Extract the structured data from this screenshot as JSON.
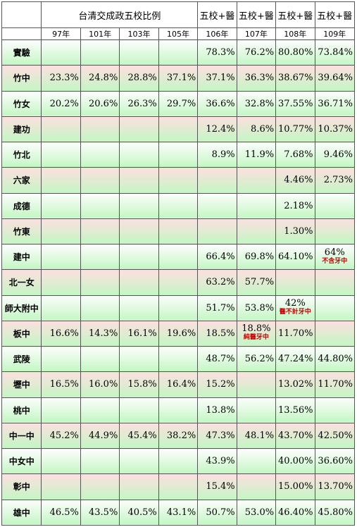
{
  "header": {
    "group_title": "台清交成政五校比例",
    "group_cols": [
      "106年",
      "107年",
      "108年",
      "109年"
    ],
    "group_col_title": "五校+醫",
    "years": [
      "97年",
      "101年",
      "103年",
      "105年",
      "106年",
      "107年",
      "108年",
      "109年"
    ]
  },
  "rows": [
    {
      "school": "實驗",
      "values": [
        "",
        "",
        "",
        "",
        "78.3%",
        "76.2%",
        "80.80%",
        "73.84%"
      ],
      "notes": [
        "",
        "",
        "",
        "",
        "",
        "",
        "",
        ""
      ],
      "tint": "g"
    },
    {
      "school": "竹中",
      "values": [
        "23.3%",
        "24.8%",
        "28.8%",
        "37.1%",
        "37.1%",
        "36.3%",
        "38.67%",
        "39.64%"
      ],
      "notes": [
        "",
        "",
        "",
        "",
        "",
        "",
        "",
        ""
      ],
      "tint": "p"
    },
    {
      "school": "竹女",
      "values": [
        "20.2%",
        "20.6%",
        "26.3%",
        "29.7%",
        "36.6%",
        "32.8%",
        "37.55%",
        "36.71%"
      ],
      "notes": [
        "",
        "",
        "",
        "",
        "",
        "",
        "",
        ""
      ],
      "tint": "g"
    },
    {
      "school": "建功",
      "values": [
        "",
        "",
        "",
        "",
        "12.4%",
        "8.6%",
        "10.77%",
        "10.37%"
      ],
      "notes": [
        "",
        "",
        "",
        "",
        "",
        "",
        "",
        ""
      ],
      "tint": "p"
    },
    {
      "school": "竹北",
      "values": [
        "",
        "",
        "",
        "",
        "8.9%",
        "11.9%",
        "7.68%",
        "9.46%"
      ],
      "notes": [
        "",
        "",
        "",
        "",
        "",
        "",
        "",
        ""
      ],
      "tint": "g"
    },
    {
      "school": "六家",
      "values": [
        "",
        "",
        "",
        "",
        "",
        "",
        "4.46%",
        "2.73%"
      ],
      "notes": [
        "",
        "",
        "",
        "",
        "",
        "",
        "",
        ""
      ],
      "tint": "p"
    },
    {
      "school": "成德",
      "values": [
        "",
        "",
        "",
        "",
        "",
        "",
        "2.18%",
        ""
      ],
      "notes": [
        "",
        "",
        "",
        "",
        "",
        "",
        "",
        ""
      ],
      "tint": "g"
    },
    {
      "school": "竹東",
      "values": [
        "",
        "",
        "",
        "",
        "",
        "",
        "1.30%",
        ""
      ],
      "notes": [
        "",
        "",
        "",
        "",
        "",
        "",
        "",
        ""
      ],
      "tint": "p"
    },
    {
      "school": "建中",
      "values": [
        "",
        "",
        "",
        "",
        "66.4%",
        "69.8%",
        "64.10%",
        "64%"
      ],
      "notes": [
        "",
        "",
        "",
        "",
        "",
        "",
        "",
        "不含牙中"
      ],
      "tint": "g"
    },
    {
      "school": "北一女",
      "values": [
        "",
        "",
        "",
        "",
        "63.2%",
        "57.7%",
        "",
        ""
      ],
      "notes": [
        "",
        "",
        "",
        "",
        "",
        "",
        "",
        ""
      ],
      "tint": "p"
    },
    {
      "school": "師大附中",
      "values": [
        "",
        "",
        "",
        "",
        "51.7%",
        "53.8%",
        "42%",
        ""
      ],
      "notes": [
        "",
        "",
        "",
        "",
        "",
        "",
        "醫不計牙中",
        ""
      ],
      "tint": "g"
    },
    {
      "school": "板中",
      "values": [
        "16.6%",
        "14.3%",
        "16.1%",
        "19.6%",
        "18.5%",
        "18.8%",
        "11.70%",
        ""
      ],
      "notes": [
        "",
        "",
        "",
        "",
        "",
        "純醫牙中",
        "",
        ""
      ],
      "tint": "p"
    },
    {
      "school": "武陵",
      "values": [
        "",
        "",
        "",
        "",
        "48.7%",
        "56.2%",
        "47.24%",
        "44.80%"
      ],
      "notes": [
        "",
        "",
        "",
        "",
        "",
        "",
        "",
        ""
      ],
      "tint": "g"
    },
    {
      "school": "壢中",
      "values": [
        "16.5%",
        "16.0%",
        "15.8%",
        "16.4%",
        "15.2%",
        "",
        "13.02%",
        "11.70%"
      ],
      "notes": [
        "",
        "",
        "",
        "",
        "",
        "",
        "",
        ""
      ],
      "tint": "p"
    },
    {
      "school": "桃中",
      "values": [
        "",
        "",
        "",
        "",
        "13.8%",
        "",
        "13.56%",
        ""
      ],
      "notes": [
        "",
        "",
        "",
        "",
        "",
        "",
        "",
        ""
      ],
      "tint": "g"
    },
    {
      "school": "中一中",
      "values": [
        "45.2%",
        "44.9%",
        "45.4%",
        "38.2%",
        "47.3%",
        "48.1%",
        "43.70%",
        "42.50%"
      ],
      "notes": [
        "",
        "",
        "",
        "",
        "",
        "",
        "",
        ""
      ],
      "tint": "p"
    },
    {
      "school": "中女中",
      "values": [
        "",
        "",
        "",
        "",
        "43.9%",
        "",
        "40.00%",
        "36.60%"
      ],
      "notes": [
        "",
        "",
        "",
        "",
        "",
        "",
        "",
        ""
      ],
      "tint": "g"
    },
    {
      "school": "彰中",
      "values": [
        "",
        "",
        "",
        "",
        "15.4%",
        "",
        "15.00%",
        "13.70%"
      ],
      "notes": [
        "",
        "",
        "",
        "",
        "",
        "",
        "",
        ""
      ],
      "tint": "p"
    },
    {
      "school": "雄中",
      "values": [
        "46.5%",
        "43.5%",
        "40.5%",
        "43.1%",
        "50.7%",
        "53.0%",
        "46.40%",
        "45.80%"
      ],
      "notes": [
        "",
        "",
        "",
        "",
        "",
        "",
        "",
        ""
      ],
      "tint": "g"
    }
  ]
}
